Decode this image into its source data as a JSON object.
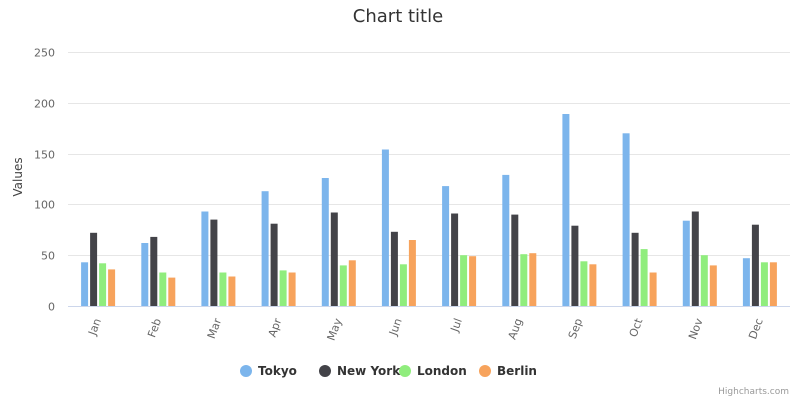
{
  "chart_data": {
    "type": "bar",
    "title": "Chart title",
    "xlabel": "",
    "ylabel": "Values",
    "ylim": [
      0,
      250
    ],
    "yticks": [
      0,
      50,
      100,
      150,
      200,
      250
    ],
    "grid": true,
    "legend_position": "bottom-center",
    "categories": [
      "Jan",
      "Feb",
      "Mar",
      "Apr",
      "May",
      "Jun",
      "Jul",
      "Aug",
      "Sep",
      "Oct",
      "Nov",
      "Dec"
    ],
    "series": [
      {
        "name": "Tokyo",
        "color": "#7cb5ec",
        "values": [
          43,
          62,
          93,
          113,
          126,
          154,
          118,
          129,
          189,
          170,
          84,
          47
        ]
      },
      {
        "name": "New York",
        "color": "#434348",
        "values": [
          72,
          68,
          85,
          81,
          92,
          73,
          91,
          90,
          79,
          72,
          93,
          80
        ]
      },
      {
        "name": "London",
        "color": "#90ed7d",
        "values": [
          42,
          33,
          33,
          35,
          40,
          41,
          50,
          51,
          44,
          56,
          50,
          43
        ]
      },
      {
        "name": "Berlin",
        "color": "#f7a35c",
        "values": [
          36,
          28,
          29,
          33,
          45,
          65,
          49,
          52,
          41,
          33,
          40,
          43
        ]
      }
    ]
  },
  "credits": "Highcharts.com"
}
